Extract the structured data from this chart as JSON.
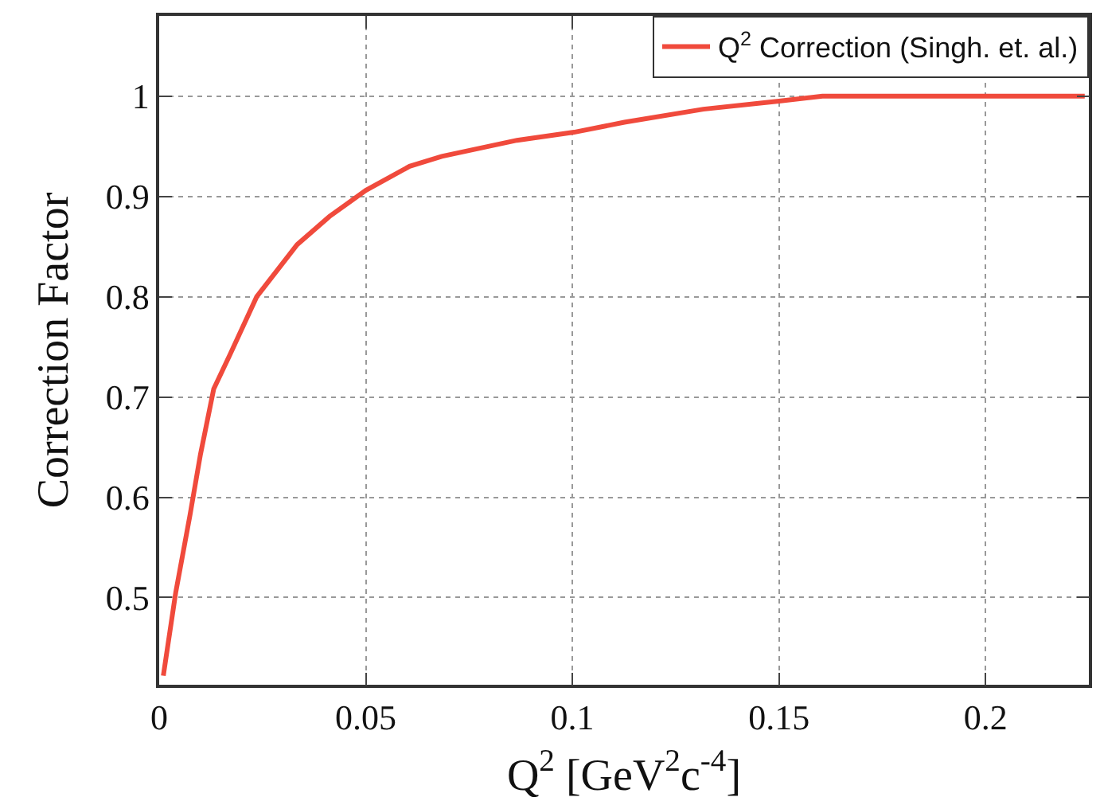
{
  "chart_data": {
    "type": "line",
    "xlabel": "Q$^{2}$ [GeV$^{2}$c$^{-4}$]",
    "ylabel": "Correction Factor",
    "xlim": [
      0,
      0.225
    ],
    "ylim": [
      0.413,
      1.08
    ],
    "xticks": [
      0,
      0.05,
      0.1,
      0.15,
      0.2
    ],
    "yticks": [
      0.5,
      0.6,
      0.7,
      0.8,
      0.9,
      1
    ],
    "grid": true,
    "legend": "top right",
    "line_style": "solid",
    "series": [
      {
        "name": "Q$^{2}$ Correction (Singh. et. al.)",
        "color": "#f04a3c",
        "x": [
          0.001,
          0.004,
          0.0074,
          0.01,
          0.0132,
          0.0171,
          0.0236,
          0.0334,
          0.0412,
          0.05,
          0.0606,
          0.0684,
          0.0866,
          0.1004,
          0.1126,
          0.1317,
          0.15,
          0.1605,
          0.1736,
          0.224
        ],
        "values": [
          0.422,
          0.505,
          0.581,
          0.643,
          0.708,
          0.742,
          0.8,
          0.852,
          0.88,
          0.906,
          0.93,
          0.94,
          0.956,
          0.964,
          0.974,
          0.987,
          0.995,
          1.0,
          1.0,
          1.0
        ]
      }
    ]
  }
}
